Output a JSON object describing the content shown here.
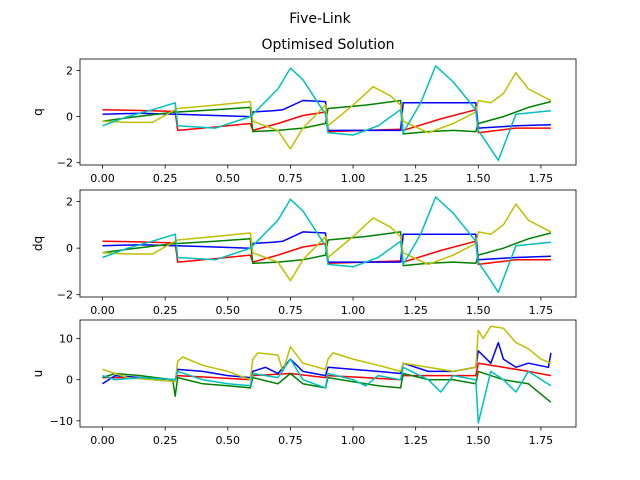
{
  "figure": {
    "suptitle": "Five-Link",
    "title": "Optimised Solution"
  },
  "colors": {
    "red": "#ff0000",
    "blue": "#0000ff",
    "green": "#008000",
    "yellow": "#bfbf00",
    "cyan": "#00bfbf"
  },
  "chart_data": [
    {
      "type": "line",
      "id": "q",
      "ylabel": "q",
      "xlim": [
        -0.09,
        1.89
      ],
      "ylim": [
        -2.1,
        2.5
      ],
      "xticks": [
        0.0,
        0.25,
        0.5,
        0.75,
        1.0,
        1.25,
        1.5,
        1.75
      ],
      "xticklabels": [
        "0.00",
        "0.25",
        "0.50",
        "0.75",
        "1.00",
        "1.25",
        "1.50",
        "1.75"
      ],
      "yticks": [
        -2,
        0,
        2
      ],
      "yticklabels": [
        "−2",
        "0",
        "2"
      ],
      "series": [
        {
          "color": "#ff0000",
          "x": [
            0.0,
            0.1,
            0.2,
            0.29,
            0.3,
            0.45,
            0.59,
            0.6,
            0.7,
            0.8,
            0.89,
            0.9,
            1.05,
            1.19,
            1.2,
            1.35,
            1.49,
            1.5,
            1.65,
            1.79
          ],
          "y": [
            0.3,
            0.28,
            0.25,
            0.22,
            -0.6,
            -0.45,
            -0.3,
            -0.6,
            -0.3,
            0.05,
            0.2,
            -0.65,
            -0.6,
            -0.55,
            -0.6,
            -0.1,
            0.3,
            -0.7,
            -0.5,
            -0.5
          ]
        },
        {
          "color": "#0000ff",
          "x": [
            0.0,
            0.15,
            0.29,
            0.3,
            0.45,
            0.59,
            0.6,
            0.68,
            0.72,
            0.8,
            0.89,
            0.9,
            1.05,
            1.19,
            1.2,
            1.3,
            1.4,
            1.49,
            1.5,
            1.65,
            1.79
          ],
          "y": [
            0.1,
            0.15,
            0.1,
            0.1,
            0.05,
            0.0,
            0.2,
            0.25,
            0.3,
            0.7,
            0.65,
            -0.6,
            -0.6,
            -0.6,
            0.6,
            0.6,
            0.6,
            0.6,
            -0.5,
            -0.4,
            -0.35
          ]
        },
        {
          "color": "#008000",
          "x": [
            0.0,
            0.1,
            0.29,
            0.3,
            0.45,
            0.59,
            0.6,
            0.7,
            0.8,
            0.89,
            0.9,
            1.05,
            1.19,
            1.2,
            1.3,
            1.4,
            1.49,
            1.5,
            1.6,
            1.7,
            1.79
          ],
          "y": [
            -0.2,
            -0.05,
            0.2,
            0.2,
            0.3,
            0.4,
            -0.65,
            -0.6,
            -0.5,
            -0.3,
            0.35,
            0.5,
            0.7,
            -0.75,
            -0.65,
            -0.6,
            -0.65,
            -0.3,
            0.0,
            0.4,
            0.65
          ]
        },
        {
          "color": "#bfbf00",
          "x": [
            0.0,
            0.1,
            0.2,
            0.29,
            0.3,
            0.45,
            0.59,
            0.6,
            0.7,
            0.75,
            0.8,
            0.89,
            0.9,
            1.0,
            1.08,
            1.15,
            1.19,
            1.2,
            1.3,
            1.4,
            1.49,
            1.5,
            1.55,
            1.6,
            1.65,
            1.7,
            1.79
          ],
          "y": [
            -0.2,
            -0.25,
            -0.25,
            0.3,
            0.35,
            0.5,
            0.65,
            -0.2,
            -0.6,
            -1.4,
            -0.5,
            0.5,
            -0.4,
            0.5,
            1.3,
            0.9,
            0.5,
            -0.2,
            -0.7,
            -0.3,
            0.2,
            0.7,
            0.6,
            1.0,
            1.9,
            1.2,
            0.7
          ]
        },
        {
          "color": "#00bfbf",
          "x": [
            0.0,
            0.1,
            0.2,
            0.29,
            0.3,
            0.45,
            0.59,
            0.6,
            0.7,
            0.75,
            0.8,
            0.89,
            0.9,
            1.0,
            1.1,
            1.19,
            1.2,
            1.27,
            1.33,
            1.4,
            1.49,
            1.5,
            1.55,
            1.58,
            1.65,
            1.79
          ],
          "y": [
            -0.4,
            0.0,
            0.3,
            0.6,
            -0.4,
            -0.5,
            0.0,
            0.1,
            1.2,
            2.1,
            1.6,
            0.1,
            -0.7,
            -0.8,
            -0.4,
            0.3,
            -0.7,
            0.6,
            2.2,
            1.5,
            0.3,
            -0.6,
            -1.4,
            -1.9,
            0.1,
            0.25
          ]
        }
      ]
    },
    {
      "type": "line",
      "id": "dq",
      "ylabel": "dq",
      "xlim": [
        -0.09,
        1.89
      ],
      "ylim": [
        -2.1,
        2.5
      ],
      "xticks": [
        0.0,
        0.25,
        0.5,
        0.75,
        1.0,
        1.25,
        1.5,
        1.75
      ],
      "xticklabels": [
        "0.00",
        "0.25",
        "0.50",
        "0.75",
        "1.00",
        "1.25",
        "1.50",
        "1.75"
      ],
      "yticks": [
        -2,
        0,
        2
      ],
      "yticklabels": [
        "−2",
        "0",
        "2"
      ],
      "series": [
        {
          "color": "#ff0000",
          "x": [
            0.0,
            0.1,
            0.2,
            0.29,
            0.3,
            0.45,
            0.59,
            0.6,
            0.7,
            0.8,
            0.89,
            0.9,
            1.05,
            1.19,
            1.2,
            1.35,
            1.49,
            1.5,
            1.65,
            1.79
          ],
          "y": [
            0.3,
            0.28,
            0.25,
            0.22,
            -0.6,
            -0.45,
            -0.3,
            -0.6,
            -0.3,
            0.05,
            0.2,
            -0.65,
            -0.6,
            -0.55,
            -0.6,
            -0.1,
            0.3,
            -0.7,
            -0.5,
            -0.5
          ]
        },
        {
          "color": "#0000ff",
          "x": [
            0.0,
            0.15,
            0.29,
            0.3,
            0.45,
            0.59,
            0.6,
            0.68,
            0.72,
            0.8,
            0.89,
            0.9,
            1.05,
            1.19,
            1.2,
            1.3,
            1.4,
            1.49,
            1.5,
            1.65,
            1.79
          ],
          "y": [
            0.1,
            0.15,
            0.1,
            0.1,
            0.05,
            0.0,
            0.2,
            0.25,
            0.3,
            0.7,
            0.65,
            -0.6,
            -0.6,
            -0.6,
            0.6,
            0.6,
            0.6,
            0.6,
            -0.5,
            -0.4,
            -0.35
          ]
        },
        {
          "color": "#008000",
          "x": [
            0.0,
            0.1,
            0.29,
            0.3,
            0.45,
            0.59,
            0.6,
            0.7,
            0.8,
            0.89,
            0.9,
            1.05,
            1.19,
            1.2,
            1.3,
            1.4,
            1.49,
            1.5,
            1.6,
            1.7,
            1.79
          ],
          "y": [
            -0.2,
            -0.05,
            0.2,
            0.2,
            0.3,
            0.4,
            -0.65,
            -0.6,
            -0.5,
            -0.3,
            0.35,
            0.5,
            0.7,
            -0.75,
            -0.65,
            -0.6,
            -0.65,
            -0.3,
            0.0,
            0.4,
            0.65
          ]
        },
        {
          "color": "#bfbf00",
          "x": [
            0.0,
            0.1,
            0.2,
            0.29,
            0.3,
            0.45,
            0.59,
            0.6,
            0.7,
            0.75,
            0.8,
            0.89,
            0.9,
            1.0,
            1.08,
            1.15,
            1.19,
            1.2,
            1.3,
            1.4,
            1.49,
            1.5,
            1.55,
            1.6,
            1.65,
            1.7,
            1.79
          ],
          "y": [
            -0.2,
            -0.25,
            -0.25,
            0.3,
            0.35,
            0.5,
            0.65,
            -0.2,
            -0.6,
            -1.4,
            -0.5,
            0.5,
            -0.4,
            0.5,
            1.3,
            0.9,
            0.5,
            -0.2,
            -0.7,
            -0.3,
            0.2,
            0.7,
            0.6,
            1.0,
            1.9,
            1.2,
            0.7
          ]
        },
        {
          "color": "#00bfbf",
          "x": [
            0.0,
            0.1,
            0.2,
            0.29,
            0.3,
            0.45,
            0.59,
            0.6,
            0.7,
            0.75,
            0.8,
            0.89,
            0.9,
            1.0,
            1.1,
            1.19,
            1.2,
            1.27,
            1.33,
            1.4,
            1.49,
            1.5,
            1.55,
            1.58,
            1.65,
            1.79
          ],
          "y": [
            -0.4,
            0.0,
            0.3,
            0.6,
            -0.4,
            -0.5,
            0.0,
            0.1,
            1.2,
            2.1,
            1.6,
            0.1,
            -0.7,
            -0.8,
            -0.4,
            0.3,
            -0.7,
            0.6,
            2.2,
            1.5,
            0.3,
            -0.6,
            -1.4,
            -1.9,
            0.1,
            0.25
          ]
        }
      ]
    },
    {
      "type": "line",
      "id": "u",
      "ylabel": "u",
      "xlim": [
        -0.09,
        1.89
      ],
      "ylim": [
        -11.5,
        14.5
      ],
      "xticks": [
        0.0,
        0.25,
        0.5,
        0.75,
        1.0,
        1.25,
        1.5,
        1.75
      ],
      "xticklabels": [
        "0.00",
        "0.25",
        "0.50",
        "0.75",
        "1.00",
        "1.25",
        "1.50",
        "1.75"
      ],
      "yticks": [
        -10,
        0,
        10
      ],
      "yticklabels": [
        "−10",
        "0",
        "10"
      ],
      "series": [
        {
          "color": "#ff0000",
          "x": [
            0.0,
            0.1,
            0.2,
            0.29,
            0.3,
            0.45,
            0.59,
            0.6,
            0.75,
            0.89,
            0.9,
            1.05,
            1.19,
            1.2,
            1.35,
            1.49,
            1.5,
            1.6,
            1.7,
            1.79
          ],
          "y": [
            0.5,
            0.5,
            0.3,
            0.0,
            1.0,
            0.5,
            0.0,
            1.0,
            1.5,
            0.5,
            1.0,
            0.5,
            0.0,
            1.0,
            1.0,
            1.0,
            4.0,
            3.0,
            2.0,
            1.0
          ]
        },
        {
          "color": "#0000ff",
          "x": [
            0.0,
            0.05,
            0.15,
            0.29,
            0.3,
            0.4,
            0.5,
            0.59,
            0.6,
            0.65,
            0.7,
            0.75,
            0.8,
            0.89,
            0.9,
            1.0,
            1.1,
            1.19,
            1.2,
            1.3,
            1.4,
            1.49,
            1.5,
            1.55,
            1.58,
            1.6,
            1.65,
            1.7,
            1.78,
            1.79
          ],
          "y": [
            -1.0,
            1.0,
            0.5,
            0.0,
            2.5,
            2.0,
            1.0,
            0.5,
            2.0,
            3.0,
            1.5,
            5.0,
            2.0,
            1.0,
            3.0,
            2.5,
            2.0,
            1.5,
            4.0,
            2.0,
            2.0,
            3.0,
            7.0,
            4.0,
            9.0,
            5.0,
            3.0,
            4.0,
            3.0,
            6.5
          ]
        },
        {
          "color": "#008000",
          "x": [
            0.0,
            0.05,
            0.15,
            0.28,
            0.29,
            0.3,
            0.4,
            0.5,
            0.59,
            0.6,
            0.7,
            0.75,
            0.8,
            0.89,
            0.9,
            1.0,
            1.1,
            1.19,
            1.2,
            1.3,
            1.4,
            1.49,
            1.5,
            1.6,
            1.7,
            1.79
          ],
          "y": [
            0.5,
            1.5,
            1.0,
            0.0,
            -4.0,
            0.5,
            -1.0,
            -1.5,
            -2.0,
            0.5,
            -1.0,
            1.5,
            -1.0,
            -2.0,
            0.5,
            -0.5,
            -1.5,
            -2.0,
            1.5,
            0.0,
            0.0,
            -1.0,
            2.0,
            0.0,
            -1.0,
            -5.5
          ]
        },
        {
          "color": "#bfbf00",
          "x": [
            0.0,
            0.1,
            0.2,
            0.29,
            0.3,
            0.32,
            0.4,
            0.5,
            0.59,
            0.6,
            0.62,
            0.7,
            0.72,
            0.75,
            0.8,
            0.89,
            0.9,
            0.92,
            1.0,
            1.1,
            1.19,
            1.2,
            1.3,
            1.4,
            1.49,
            1.5,
            1.52,
            1.55,
            1.6,
            1.65,
            1.7,
            1.75,
            1.79
          ],
          "y": [
            2.5,
            0.5,
            0.0,
            -0.5,
            4.5,
            5.5,
            3.5,
            2.0,
            0.0,
            5.0,
            6.5,
            6.0,
            2.0,
            8.0,
            4.0,
            2.5,
            5.0,
            6.5,
            5.0,
            3.5,
            2.0,
            4.0,
            3.0,
            2.0,
            3.0,
            12.0,
            10.0,
            13.0,
            12.5,
            9.0,
            7.5,
            5.0,
            4.0
          ]
        },
        {
          "color": "#00bfbf",
          "x": [
            0.0,
            0.05,
            0.15,
            0.29,
            0.3,
            0.4,
            0.5,
            0.59,
            0.6,
            0.7,
            0.75,
            0.8,
            0.89,
            0.9,
            1.0,
            1.05,
            1.1,
            1.19,
            1.2,
            1.3,
            1.35,
            1.4,
            1.49,
            1.5,
            1.55,
            1.6,
            1.65,
            1.7,
            1.79
          ],
          "y": [
            1.0,
            0.0,
            0.5,
            0.0,
            2.0,
            0.0,
            -1.0,
            -1.5,
            1.5,
            0.5,
            5.0,
            0.0,
            -2.0,
            1.5,
            0.0,
            -1.5,
            1.0,
            0.0,
            3.0,
            0.0,
            -3.0,
            1.0,
            0.0,
            -10.5,
            2.0,
            0.0,
            -3.0,
            2.0,
            -1.5
          ]
        }
      ]
    }
  ]
}
